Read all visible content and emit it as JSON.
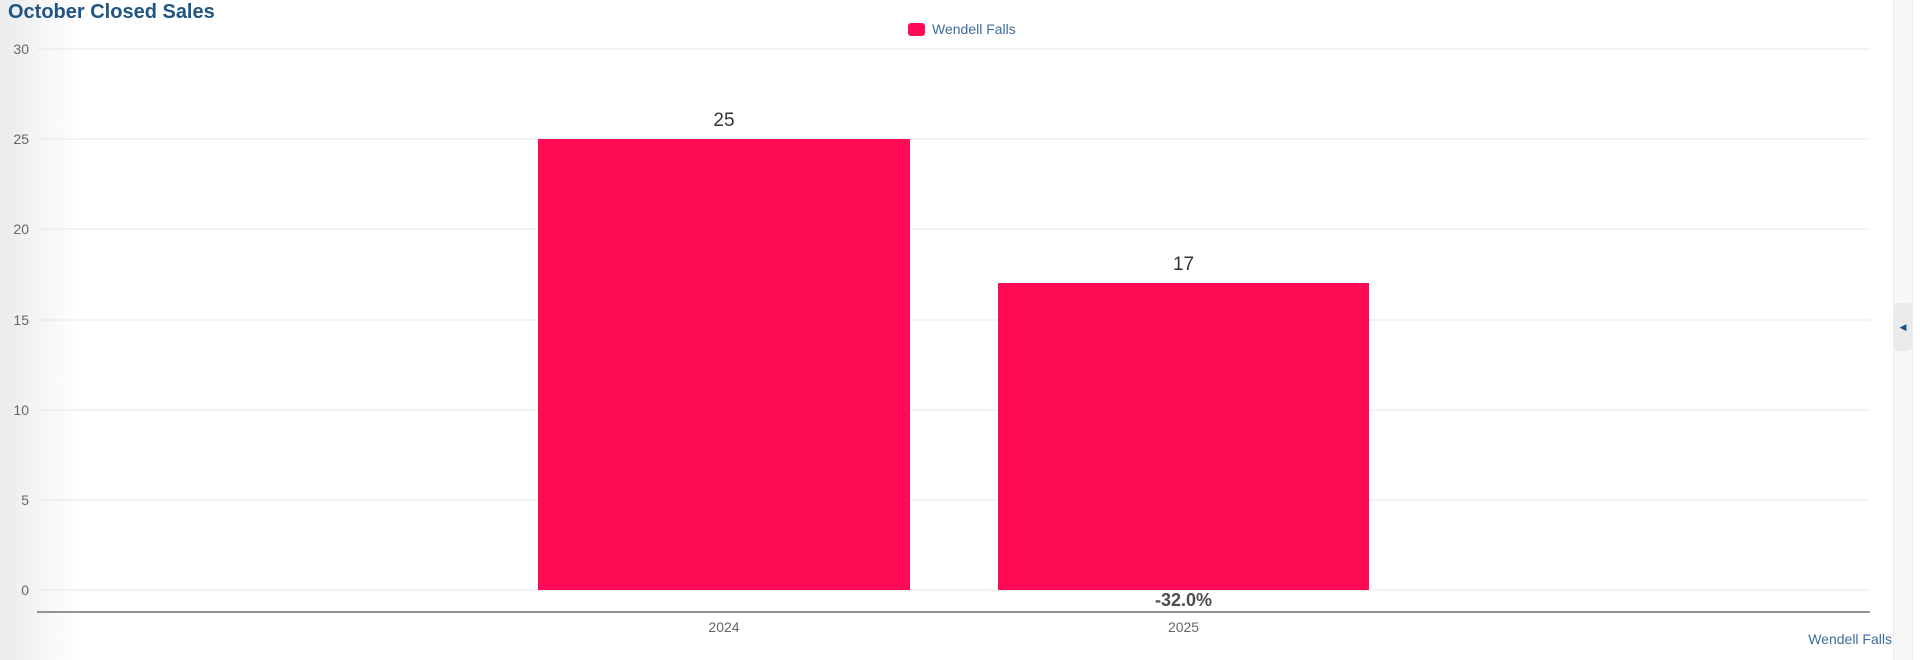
{
  "title": "October Closed Sales",
  "legend": {
    "label": "Wendell Falls"
  },
  "footer": {
    "label": "Wendell Falls"
  },
  "icons": {
    "collapse_left_arrow": "◀"
  },
  "colors": {
    "accent_pink": "#ff0a54",
    "title_blue": "#1f5582",
    "link_blue": "#3d6c9c"
  },
  "chart_data": {
    "type": "bar",
    "title": "October Closed Sales",
    "categories": [
      "2024",
      "2025"
    ],
    "series": [
      {
        "name": "Wendell Falls",
        "color": "#ff0a54",
        "values": [
          25,
          17
        ]
      }
    ],
    "data_labels": [
      "25",
      "17"
    ],
    "annotations": [
      {
        "text": "-32.0%",
        "category": "2025"
      }
    ],
    "xlabel": "",
    "ylabel": "",
    "ylim": [
      0,
      30
    ],
    "yticks": [
      0,
      5,
      10,
      15,
      20,
      25,
      30
    ],
    "grid": true,
    "legend_position": "top-center"
  }
}
